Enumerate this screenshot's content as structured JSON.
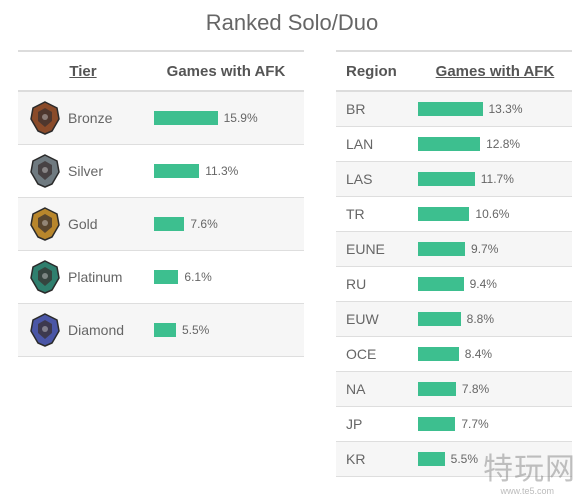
{
  "title": "Ranked Solo/Duo",
  "colors": {
    "bar": "#3dbf8f",
    "header_border": "#dcdcdc",
    "row_alt": "#f6f6f6"
  },
  "watermark": {
    "text": "特玩网",
    "url": "www.te5.com"
  },
  "tier_table": {
    "headers": [
      "Tier",
      "Games with AFK"
    ],
    "rows": [
      {
        "name": "Bronze",
        "value": 15.9,
        "label": "15.9%",
        "emblem_color": "#8a4b2a",
        "icon": "bronze-emblem-icon"
      },
      {
        "name": "Silver",
        "value": 11.3,
        "label": "11.3%",
        "emblem_color": "#6f7a80",
        "icon": "silver-emblem-icon"
      },
      {
        "name": "Gold",
        "value": 7.6,
        "label": "7.6%",
        "emblem_color": "#b8862c",
        "icon": "gold-emblem-icon"
      },
      {
        "name": "Platinum",
        "value": 6.1,
        "label": "6.1%",
        "emblem_color": "#2f7f6e",
        "icon": "platinum-emblem-icon"
      },
      {
        "name": "Diamond",
        "value": 5.5,
        "label": "5.5%",
        "emblem_color": "#4a56a6",
        "icon": "diamond-emblem-icon"
      }
    ]
  },
  "region_table": {
    "headers": [
      "Region",
      "Games with AFK"
    ],
    "rows": [
      {
        "name": "BR",
        "value": 13.3,
        "label": "13.3%"
      },
      {
        "name": "LAN",
        "value": 12.8,
        "label": "12.8%"
      },
      {
        "name": "LAS",
        "value": 11.7,
        "label": "11.7%"
      },
      {
        "name": "TR",
        "value": 10.6,
        "label": "10.6%"
      },
      {
        "name": "EUNE",
        "value": 9.7,
        "label": "9.7%"
      },
      {
        "name": "RU",
        "value": 9.4,
        "label": "9.4%"
      },
      {
        "name": "EUW",
        "value": 8.8,
        "label": "8.8%"
      },
      {
        "name": "OCE",
        "value": 8.4,
        "label": "8.4%"
      },
      {
        "name": "NA",
        "value": 7.8,
        "label": "7.8%"
      },
      {
        "name": "JP",
        "value": 7.7,
        "label": "7.7%"
      },
      {
        "name": "KR",
        "value": 5.5,
        "label": "5.5%"
      }
    ]
  },
  "chart_data": [
    {
      "type": "bar",
      "orientation": "horizontal",
      "title": "Ranked Solo/Duo",
      "categories": [
        "Bronze",
        "Silver",
        "Gold",
        "Platinum",
        "Diamond"
      ],
      "values": [
        15.9,
        11.3,
        7.6,
        6.1,
        5.5
      ],
      "xlabel": "Games with AFK",
      "ylabel": "Tier"
    },
    {
      "type": "bar",
      "orientation": "horizontal",
      "title": "Ranked Solo/Duo",
      "categories": [
        "BR",
        "LAN",
        "LAS",
        "TR",
        "EUNE",
        "RU",
        "EUW",
        "OCE",
        "NA",
        "JP",
        "KR"
      ],
      "values": [
        13.3,
        12.8,
        11.7,
        10.6,
        9.7,
        9.4,
        8.8,
        8.4,
        7.8,
        7.7,
        5.5
      ],
      "xlabel": "Games with AFK",
      "ylabel": "Region"
    }
  ]
}
